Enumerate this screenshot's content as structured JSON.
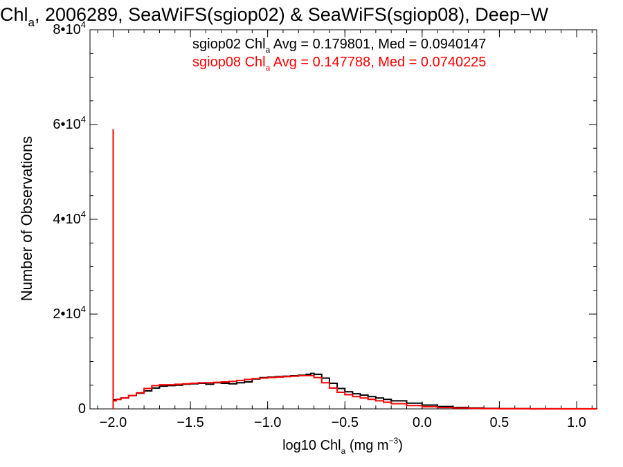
{
  "chart_data": {
    "type": "line",
    "title": {
      "parts": [
        {
          "t": "Chl",
          "s": "base"
        },
        {
          "t": "a",
          "s": "sub"
        },
        {
          "t": ", 2006289, SeaWiFS(sgiop02) & SeaWiFS(sgiop08), Deep−W",
          "s": "base"
        }
      ]
    },
    "xlabel": {
      "parts": [
        {
          "t": "log10 Chl",
          "s": "base"
        },
        {
          "t": "a",
          "s": "sub"
        },
        {
          "t": " (mg m",
          "s": "base"
        },
        {
          "t": "−3",
          "s": "sup"
        },
        {
          "t": ")",
          "s": "base"
        }
      ]
    },
    "ylabel": "Number of Observations",
    "xlim": [
      -2.15,
      1.13
    ],
    "ylim": [
      0,
      80000
    ],
    "x_ticks": [
      {
        "value": -2.0,
        "label": "−2.0"
      },
      {
        "value": -1.5,
        "label": "−1.5"
      },
      {
        "value": -1.0,
        "label": "−1.0"
      },
      {
        "value": -0.5,
        "label": "−0.5"
      },
      {
        "value": 0.0,
        "label": "0.0"
      },
      {
        "value": 0.5,
        "label": "0.5"
      },
      {
        "value": 1.0,
        "label": "1.0"
      }
    ],
    "x_minor_step": 0.1,
    "y_ticks": [
      {
        "value": 0,
        "base": "0",
        "exp": ""
      },
      {
        "value": 20000,
        "base": "2•10",
        "exp": "4"
      },
      {
        "value": 40000,
        "base": "4•10",
        "exp": "4"
      },
      {
        "value": 60000,
        "base": "6•10",
        "exp": "4"
      },
      {
        "value": 80000,
        "base": "8•10",
        "exp": "4"
      }
    ],
    "y_minor_step": 5000,
    "grid": false,
    "legend_position": "top-right",
    "series": [
      {
        "name": "sgiop02",
        "color": "#000000",
        "legend_parts": [
          {
            "t": "sgiop02 Chl",
            "s": "base"
          },
          {
            "t": "a",
            "s": "sub"
          },
          {
            "t": " Avg = 0.179801, Med = 0.0940147",
            "s": "base"
          }
        ],
        "x": [
          -2.0,
          -2.0,
          -1.98,
          -1.95,
          -1.9,
          -1.85,
          -1.8,
          -1.75,
          -1.7,
          -1.65,
          -1.6,
          -1.55,
          -1.5,
          -1.45,
          -1.4,
          -1.35,
          -1.3,
          -1.25,
          -1.2,
          -1.15,
          -1.1,
          -1.05,
          -1.0,
          -0.95,
          -0.9,
          -0.85,
          -0.8,
          -0.75,
          -0.72,
          -0.7,
          -0.65,
          -0.6,
          -0.55,
          -0.5,
          -0.45,
          -0.4,
          -0.35,
          -0.3,
          -0.25,
          -0.2,
          -0.1,
          0.0,
          0.1,
          0.2,
          0.3,
          0.4,
          0.5,
          0.7,
          0.9,
          1.13
        ],
        "y": [
          35500,
          1900,
          2000,
          2300,
          2800,
          3300,
          3800,
          4400,
          4800,
          4900,
          5000,
          5200,
          5300,
          5400,
          5200,
          5500,
          5400,
          5300,
          5500,
          5700,
          6300,
          6600,
          6700,
          6800,
          6900,
          7000,
          7100,
          7300,
          7500,
          7300,
          6500,
          5400,
          4300,
          3600,
          3200,
          2900,
          2600,
          2300,
          2000,
          1700,
          1200,
          800,
          500,
          300,
          200,
          100,
          60,
          20,
          10,
          0
        ]
      },
      {
        "name": "sgiop08",
        "color": "#ff0000",
        "legend_parts": [
          {
            "t": "sgiop08 Chl",
            "s": "base"
          },
          {
            "t": "a",
            "s": "sub"
          },
          {
            "t": " Avg = 0.147788, Med = 0.0740225",
            "s": "base"
          }
        ],
        "x": [
          -2.0,
          -2.0,
          -1.98,
          -1.95,
          -1.9,
          -1.85,
          -1.8,
          -1.75,
          -1.7,
          -1.65,
          -1.6,
          -1.55,
          -1.5,
          -1.45,
          -1.4,
          -1.35,
          -1.3,
          -1.25,
          -1.2,
          -1.15,
          -1.1,
          -1.05,
          -1.0,
          -0.95,
          -0.9,
          -0.85,
          -0.8,
          -0.75,
          -0.7,
          -0.65,
          -0.6,
          -0.55,
          -0.5,
          -0.45,
          -0.4,
          -0.35,
          -0.3,
          -0.25,
          -0.2,
          -0.1,
          0.0,
          0.1,
          0.2,
          0.3,
          0.4,
          0.5,
          0.7,
          0.9,
          1.13
        ],
        "y": [
          59000,
          1700,
          2000,
          2300,
          2800,
          3400,
          4300,
          4900,
          5100,
          5100,
          5200,
          5300,
          5400,
          5500,
          5500,
          5600,
          5700,
          5800,
          6000,
          6200,
          6400,
          6500,
          6600,
          6700,
          6800,
          6900,
          7000,
          7000,
          6600,
          5500,
          4400,
          3500,
          3000,
          2600,
          2300,
          2000,
          1700,
          1400,
          1100,
          700,
          450,
          280,
          170,
          100,
          60,
          30,
          15,
          5,
          0
        ]
      }
    ]
  }
}
